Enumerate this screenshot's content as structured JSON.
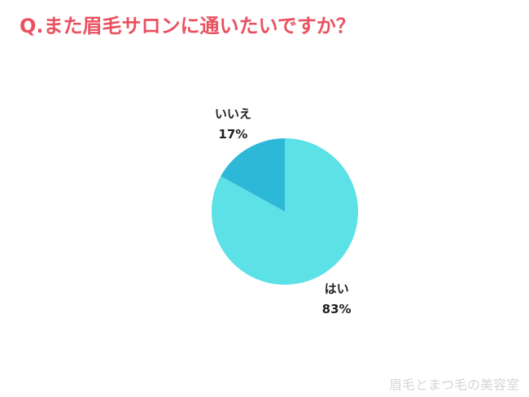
{
  "chart_data": {
    "type": "pie",
    "title": "Q.また眉毛サロンに通いたいですか？",
    "categories": [
      "はい",
      "いいえ"
    ],
    "values": [
      83,
      17
    ],
    "value_labels": [
      "83%",
      "17%"
    ],
    "colors": [
      "#5ce1e6",
      "#2eb8d8"
    ]
  },
  "watermark": "眉毛とまつ毛の美容室"
}
